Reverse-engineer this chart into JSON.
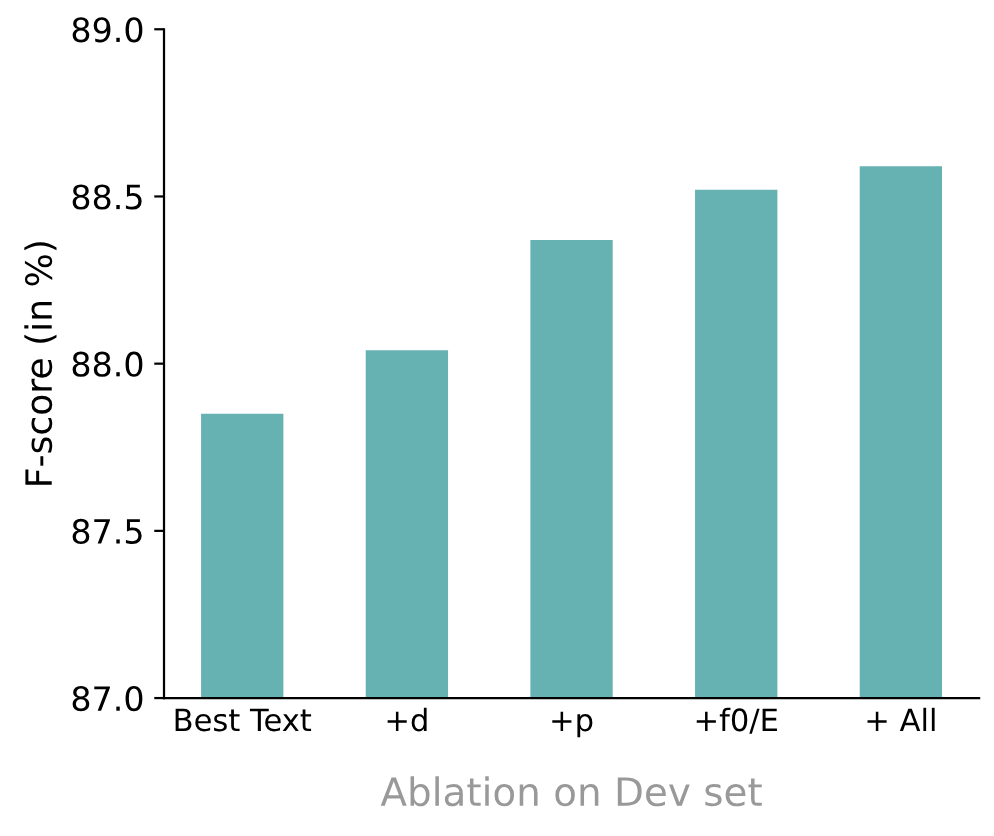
{
  "chart_data": {
    "type": "bar",
    "xlabel": "Ablation on Dev set",
    "ylabel": "F-score (in %)",
    "categories": [
      "Best Text",
      "+d",
      "+p",
      "+f0/E",
      "+ All"
    ],
    "values": [
      87.85,
      88.04,
      88.37,
      88.52,
      88.59
    ],
    "color": "#66b2b2",
    "ylim": [
      87.0,
      89.0
    ],
    "yticks": [
      {
        "value": 87.0,
        "label": "87.0"
      },
      {
        "value": 87.5,
        "label": "87.5"
      },
      {
        "value": 88.0,
        "label": "88.0"
      },
      {
        "value": 88.5,
        "label": "88.5"
      },
      {
        "value": 89.0,
        "label": "89.0"
      }
    ],
    "grid": false,
    "legend": false
  }
}
